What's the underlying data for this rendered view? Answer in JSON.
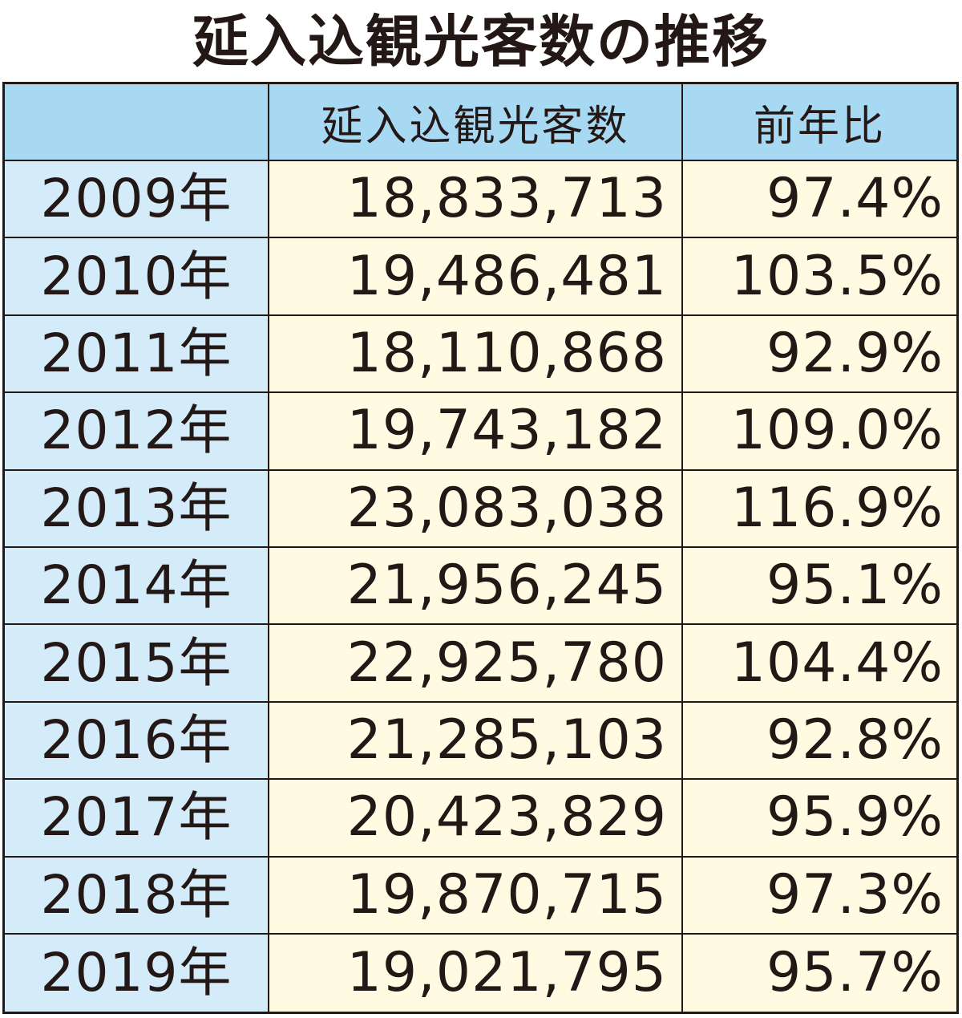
{
  "title": "延入込観光客数の推移",
  "headers": {
    "year": "",
    "visitors": "延入込観光客数",
    "ratio": "前年比"
  },
  "rows": [
    {
      "year": "2009年",
      "visitors": "18,833,713",
      "ratio": "97.4%"
    },
    {
      "year": "2010年",
      "visitors": "19,486,481",
      "ratio": "103.5%"
    },
    {
      "year": "2011年",
      "visitors": "18,110,868",
      "ratio": "92.9%"
    },
    {
      "year": "2012年",
      "visitors": "19,743,182",
      "ratio": "109.0%"
    },
    {
      "year": "2013年",
      "visitors": "23,083,038",
      "ratio": "116.9%"
    },
    {
      "year": "2014年",
      "visitors": "21,956,245",
      "ratio": "95.1%"
    },
    {
      "year": "2015年",
      "visitors": "22,925,780",
      "ratio": "104.4%"
    },
    {
      "year": "2016年",
      "visitors": "21,285,103",
      "ratio": "92.8%"
    },
    {
      "year": "2017年",
      "visitors": "20,423,829",
      "ratio": "95.9%"
    },
    {
      "year": "2018年",
      "visitors": "19,870,715",
      "ratio": "97.3%"
    },
    {
      "year": "2019年",
      "visitors": "19,021,795",
      "ratio": "95.7%"
    }
  ],
  "chart_data": {
    "type": "table",
    "title": "延入込観光客数の推移",
    "columns": [
      "",
      "延入込観光客数",
      "前年比"
    ],
    "x": [
      "2009年",
      "2010年",
      "2011年",
      "2012年",
      "2013年",
      "2014年",
      "2015年",
      "2016年",
      "2017年",
      "2018年",
      "2019年"
    ],
    "series": [
      {
        "name": "延入込観光客数",
        "values": [
          18833713,
          19486481,
          18110868,
          19743182,
          23083038,
          21956245,
          22925780,
          21285103,
          20423829,
          19870715,
          19021795
        ]
      },
      {
        "name": "前年比",
        "values": [
          97.4,
          103.5,
          92.9,
          109.0,
          116.9,
          95.1,
          104.4,
          92.8,
          95.9,
          97.3,
          95.7
        ]
      }
    ]
  },
  "colors": {
    "header_bg": "#a7d9f3",
    "year_col_bg": "#d4ecf9",
    "body_bg": "#fffbe3",
    "text": "#231815",
    "border": "#231815"
  }
}
